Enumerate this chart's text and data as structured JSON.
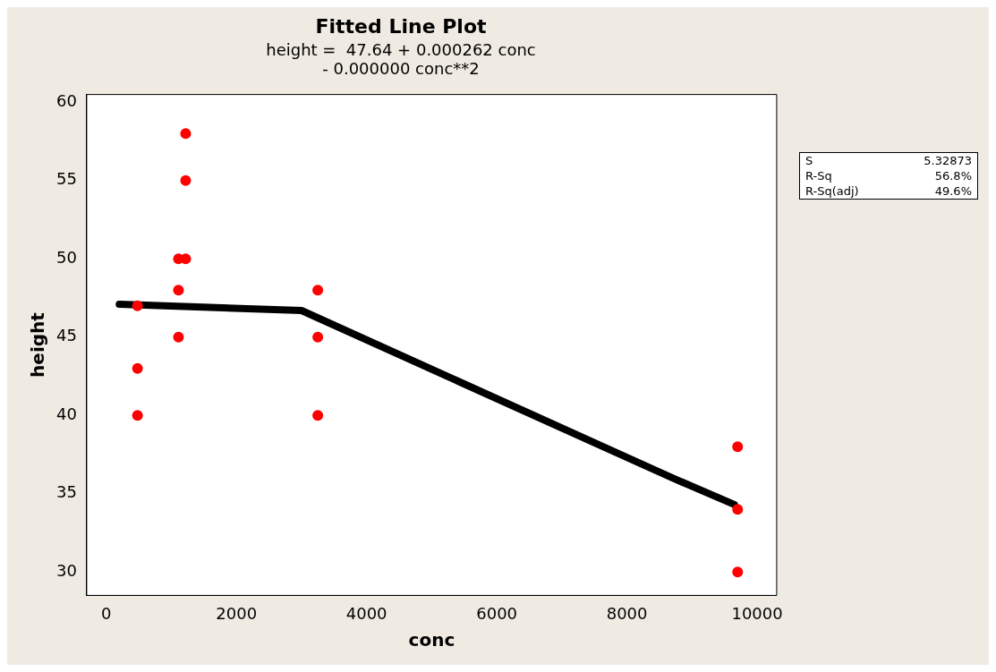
{
  "chart_data": {
    "type": "scatter",
    "title": "Fitted Line Plot",
    "subtitle": "height =  47.64 + 0.000262 conc\n- 0.000000 conc**2",
    "xlabel": "conc",
    "ylabel": "height",
    "series": [
      {
        "type": "scatter",
        "color": "#ff0000",
        "marker": "circle",
        "x": [
          480,
          480,
          480,
          1110,
          1110,
          1110,
          1220,
          1220,
          1220,
          3250,
          3250,
          3250,
          9700,
          9700,
          9700
        ],
        "values": [
          47,
          43,
          40,
          50,
          48,
          45,
          58,
          55,
          50,
          48,
          45,
          40,
          38,
          34,
          30
        ]
      },
      {
        "type": "line",
        "color": "#000000",
        "marker": "none",
        "x": [
          200,
          3000,
          8700,
          9650
        ],
        "values": [
          47.1,
          46.7,
          36.0,
          34.3
        ]
      }
    ],
    "xlim": [
      -300,
      10300
    ],
    "xticks": [
      0,
      2000,
      4000,
      6000,
      8000,
      10000
    ],
    "ylim": [
      28.5,
      60.5
    ],
    "yticks": [
      30,
      35,
      40,
      45,
      50,
      55,
      60
    ],
    "grid": false,
    "annotations": [
      "S",
      "5.32873",
      "R-Sq",
      "56.8%",
      "R-Sq(adj)",
      "49.6%"
    ]
  }
}
